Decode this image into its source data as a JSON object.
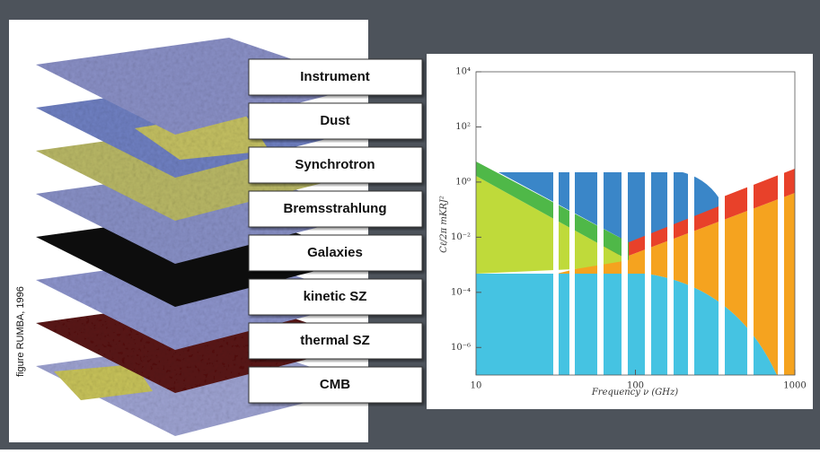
{
  "caption": "figure RUMBA, 1996",
  "layers": [
    "Instrument",
    "Dust",
    "Synchrotron",
    "Bremsstrahlung",
    "Galaxies",
    "kinetic SZ",
    "thermal SZ",
    "CMB"
  ],
  "plot": {
    "x_label": "Frequency ν (GHz)",
    "y_label": "Cℓ/2π  mKRJ²",
    "log": true,
    "xlim": [
      10,
      1000
    ],
    "xticks": [
      10,
      100,
      1000
    ],
    "ylim": [
      1e-07,
      10000
    ],
    "yticks": [
      {
        "value": 10000,
        "label": "10⁴"
      },
      {
        "value": 100,
        "label": "10²"
      },
      {
        "value": 1,
        "label": "10⁰"
      },
      {
        "value": 0.01,
        "label": "10⁻²"
      },
      {
        "value": 0.0001,
        "label": "10⁻⁴"
      },
      {
        "value": 1e-06,
        "label": "10⁻⁶"
      }
    ]
  }
}
